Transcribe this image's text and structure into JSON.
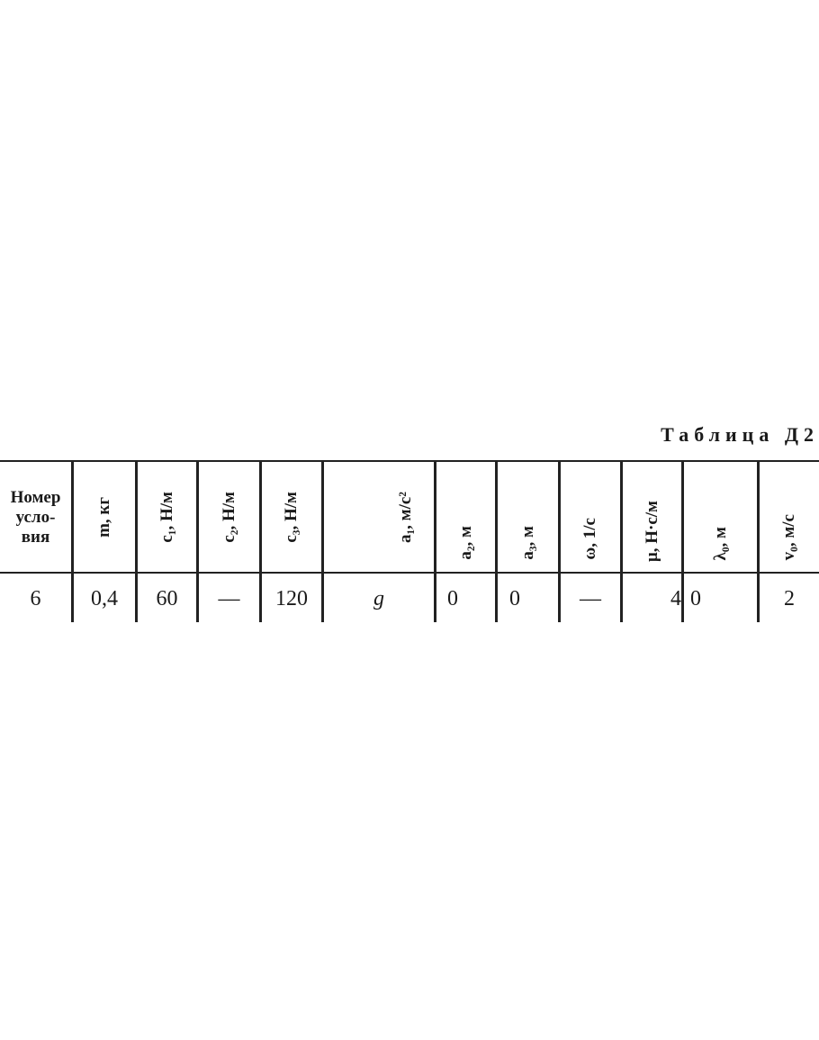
{
  "title": "Таблица Д2",
  "table": {
    "headers": [
      "Номер усло- вия",
      "m, кг",
      "c₁, Н/м",
      "c₂, Н/м",
      "c₃, Н/м",
      "a₁, м/с²",
      "a₂, м",
      "a₃, м",
      "ω, 1/с",
      "μ, Н·с/м",
      "λ₀, м",
      "v₀, м/с"
    ],
    "header_first_lines": [
      "Номер",
      "усло-",
      "вия"
    ],
    "row": [
      "6",
      "0,4",
      "60",
      "—",
      "120",
      "g",
      "0",
      "0",
      "—",
      "4",
      "0",
      "2"
    ]
  }
}
